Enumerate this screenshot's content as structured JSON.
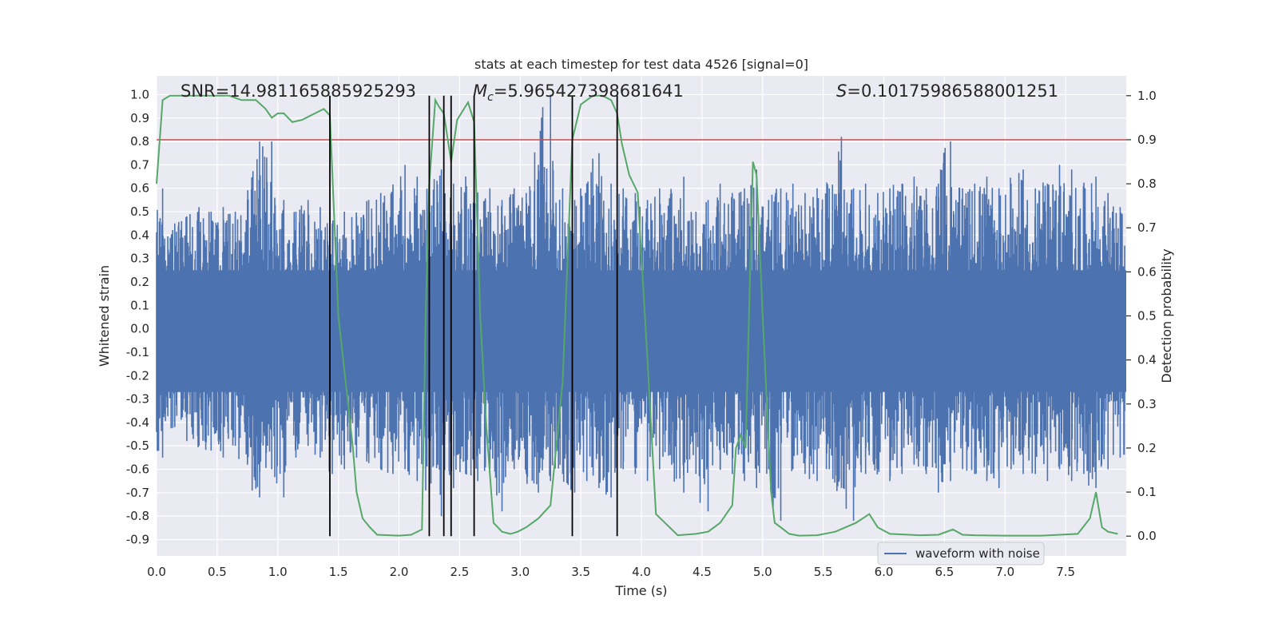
{
  "chart_data": {
    "type": "line",
    "title": "stats at each timestep for test data 4526 [signal=0]",
    "xlabel": "Time (s)",
    "ylabel_left": "Whitened strain",
    "ylabel_right": "Detection probability",
    "xlim": [
      0.0,
      8.0
    ],
    "ylim_left": [
      -0.97,
      1.08
    ],
    "ylim_right": [
      -0.045,
      1.045
    ],
    "x_ticks": [
      "0.0",
      "0.5",
      "1.0",
      "1.5",
      "2.0",
      "2.5",
      "3.0",
      "3.5",
      "4.0",
      "4.5",
      "5.0",
      "5.5",
      "6.0",
      "6.5",
      "7.0",
      "7.5"
    ],
    "y_left_ticks": [
      "1.0",
      "0.9",
      "0.8",
      "0.7",
      "0.6",
      "0.5",
      "0.4",
      "0.3",
      "0.2",
      "0.1",
      "0.0",
      "-0.1",
      "-0.2",
      "-0.3",
      "-0.4",
      "-0.5",
      "-0.6",
      "-0.7",
      "-0.8",
      "-0.9"
    ],
    "y_right_ticks": [
      "1.0",
      "0.9",
      "0.8",
      "0.7",
      "0.6",
      "0.5",
      "0.4",
      "0.3",
      "0.2",
      "0.1",
      "0.0"
    ],
    "annotations": {
      "snr": "SNR=14.981165885925293",
      "mc_symbol": "M",
      "mc_subscript": "c",
      "mc_value": "=5.965427398681641",
      "s_symbol": "S",
      "s_value": "=0.10175986588001251"
    },
    "legend": {
      "label": "waveform with noise",
      "position": "lower right"
    },
    "threshold": {
      "value": 0.9,
      "axis": "right",
      "color": "#c44e52"
    },
    "vertical_markers": [
      1.43,
      2.25,
      2.37,
      2.43,
      2.62,
      3.43,
      3.8
    ],
    "colors": {
      "waveform": "#4c72b0",
      "probability": "#55a868",
      "threshold": "#c44e52",
      "markers": "#000000",
      "plot_background": "#eaeaf2",
      "grid": "#ffffff"
    },
    "grid": true,
    "series": [
      {
        "name": "waveform with noise",
        "axis": "left",
        "sampled_envelope": {
          "x": [
            0.0,
            0.1,
            0.2,
            0.3,
            0.4,
            0.5,
            0.6,
            0.7,
            0.8,
            0.9,
            1.0,
            1.1,
            1.2,
            1.3,
            1.4,
            1.5,
            1.6,
            1.7,
            1.8,
            1.9,
            2.0,
            2.1,
            2.2,
            2.3,
            2.4,
            2.5,
            2.6,
            2.7,
            2.8,
            2.9,
            3.0,
            3.1,
            3.2,
            3.3,
            3.4,
            3.5,
            3.6,
            3.7,
            3.8,
            3.9,
            4.0,
            4.1,
            4.2,
            4.3,
            4.4,
            4.5,
            4.6,
            4.7,
            4.8,
            4.9,
            5.0,
            5.1,
            5.2,
            5.3,
            5.4,
            5.5,
            5.6,
            5.7,
            5.8,
            5.9,
            6.0,
            6.1,
            6.2,
            6.3,
            6.4,
            6.5,
            6.6,
            6.7,
            6.8,
            6.9,
            7.0,
            7.1,
            7.2,
            7.3,
            7.4,
            7.5,
            7.6,
            7.7,
            7.8,
            7.9
          ],
          "upper": [
            0.6,
            0.45,
            0.48,
            0.52,
            0.5,
            0.52,
            0.5,
            0.55,
            0.8,
            0.8,
            0.55,
            0.5,
            0.55,
            0.52,
            0.45,
            0.5,
            0.48,
            0.55,
            0.58,
            0.6,
            0.7,
            0.65,
            0.6,
            0.68,
            0.62,
            0.65,
            0.58,
            0.6,
            0.55,
            0.6,
            0.58,
            0.7,
            1.0,
            0.6,
            0.55,
            0.62,
            0.75,
            0.62,
            0.6,
            0.58,
            0.55,
            0.6,
            0.58,
            0.65,
            0.5,
            0.55,
            0.62,
            0.58,
            0.6,
            0.68,
            0.55,
            0.6,
            0.62,
            0.58,
            0.6,
            0.6,
            0.82,
            0.6,
            0.62,
            0.58,
            0.6,
            0.62,
            0.65,
            0.6,
            0.62,
            0.8,
            0.6,
            0.62,
            0.65,
            0.6,
            0.62,
            0.68,
            0.6,
            0.62,
            0.7,
            0.68,
            0.6,
            0.65,
            0.58,
            0.52
          ],
          "lower": [
            -0.55,
            -0.42,
            -0.48,
            -0.5,
            -0.52,
            -0.55,
            -0.5,
            -0.58,
            -0.72,
            -0.6,
            -0.72,
            -0.55,
            -0.5,
            -0.55,
            -0.62,
            -0.6,
            -0.55,
            -0.55,
            -0.6,
            -0.62,
            -0.6,
            -0.65,
            -0.7,
            -0.8,
            -0.68,
            -0.62,
            -0.65,
            -0.6,
            -0.78,
            -0.6,
            -0.62,
            -0.7,
            -0.65,
            -0.62,
            -0.7,
            -0.65,
            -0.68,
            -0.72,
            -0.6,
            -0.62,
            -0.65,
            -0.6,
            -0.58,
            -0.7,
            -0.62,
            -0.78,
            -0.6,
            -0.62,
            -0.65,
            -0.68,
            -0.6,
            -0.82,
            -0.6,
            -0.62,
            -0.65,
            -0.6,
            -0.68,
            -0.82,
            -0.62,
            -0.6,
            -0.65,
            -0.62,
            -0.58,
            -0.62,
            -0.7,
            -0.65,
            -0.6,
            -0.62,
            -0.65,
            -0.68,
            -0.6,
            -0.62,
            -0.62,
            -0.65,
            -0.6,
            -0.65,
            -0.62,
            -0.68,
            -0.6,
            -0.55
          ]
        }
      },
      {
        "name": "detection probability",
        "axis": "right",
        "x": [
          0.0,
          0.05,
          0.11,
          0.3,
          0.6,
          0.7,
          0.82,
          0.9,
          0.95,
          1.0,
          1.05,
          1.12,
          1.2,
          1.38,
          1.43,
          1.5,
          1.58,
          1.62,
          1.65,
          1.7,
          1.76,
          1.82,
          2.0,
          2.1,
          2.19,
          2.22,
          2.25,
          2.3,
          2.33,
          2.37,
          2.43,
          2.48,
          2.57,
          2.62,
          2.67,
          2.72,
          2.78,
          2.85,
          2.92,
          2.98,
          3.05,
          3.15,
          3.25,
          3.35,
          3.43,
          3.5,
          3.6,
          3.68,
          3.75,
          3.8,
          3.84,
          3.9,
          3.97,
          4.05,
          4.12,
          4.3,
          4.45,
          4.55,
          4.65,
          4.75,
          4.78,
          4.82,
          4.86,
          4.92,
          4.95,
          5.0,
          5.07,
          5.1,
          5.15,
          5.22,
          5.3,
          5.45,
          5.6,
          5.77,
          5.88,
          5.95,
          6.05,
          6.3,
          6.45,
          6.57,
          6.65,
          6.75,
          7.0,
          7.3,
          7.6,
          7.7,
          7.75,
          7.8,
          7.85,
          7.93
        ],
        "y": [
          0.8,
          0.99,
          1.0,
          1.0,
          1.0,
          0.99,
          0.99,
          0.97,
          0.95,
          0.96,
          0.96,
          0.94,
          0.945,
          0.97,
          0.955,
          0.5,
          0.3,
          0.2,
          0.1,
          0.04,
          0.02,
          0.003,
          0.001,
          0.003,
          0.015,
          0.5,
          0.8,
          0.99,
          0.975,
          0.96,
          0.85,
          0.945,
          0.985,
          0.94,
          0.5,
          0.25,
          0.03,
          0.01,
          0.005,
          0.01,
          0.02,
          0.04,
          0.07,
          0.35,
          0.9,
          0.98,
          1.0,
          1.0,
          0.99,
          0.96,
          0.89,
          0.82,
          0.78,
          0.4,
          0.05,
          0.002,
          0.005,
          0.01,
          0.03,
          0.07,
          0.2,
          0.23,
          0.2,
          0.85,
          0.82,
          0.5,
          0.1,
          0.03,
          0.02,
          0.005,
          0.001,
          0.002,
          0.01,
          0.03,
          0.05,
          0.02,
          0.005,
          0.002,
          0.003,
          0.015,
          0.003,
          0.002,
          0.001,
          0.001,
          0.005,
          0.04,
          0.1,
          0.02,
          0.01,
          0.005
        ]
      }
    ]
  }
}
